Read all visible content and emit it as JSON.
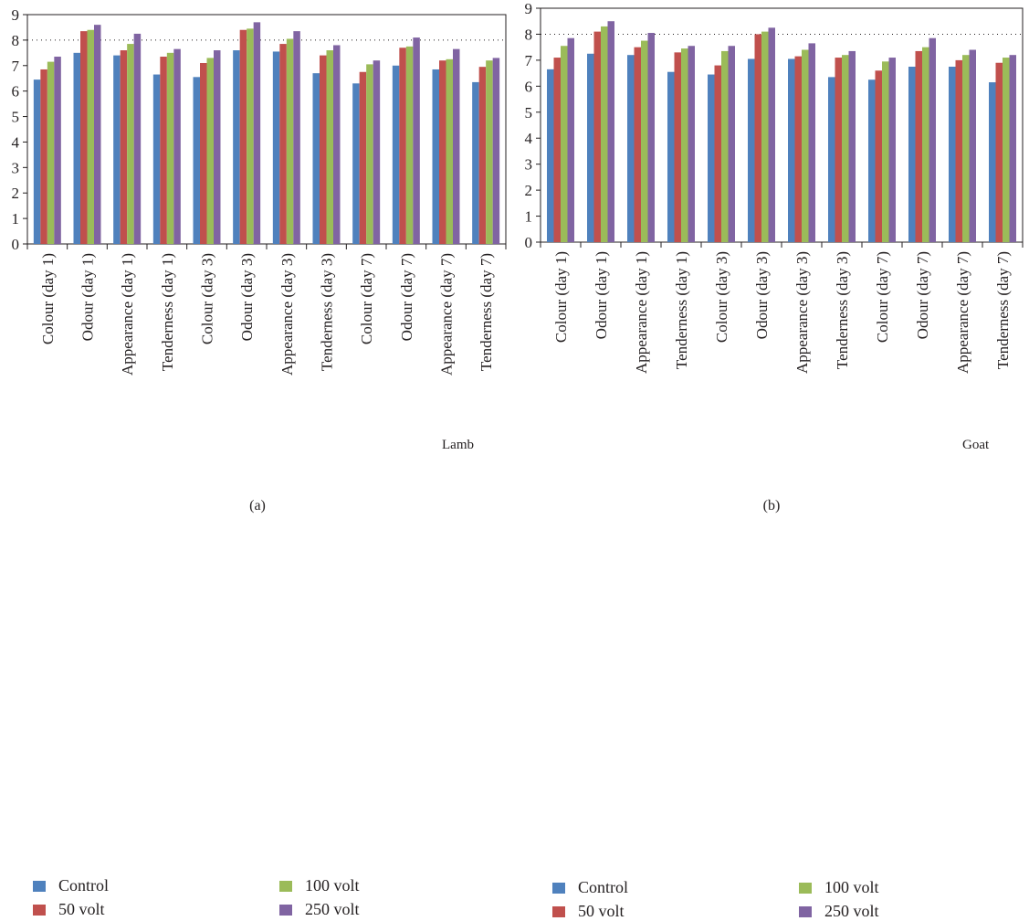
{
  "legend": {
    "colors": [
      "#4f81bd",
      "#c0504d",
      "#9bbb59",
      "#8064a2"
    ]
  },
  "chart_data": [
    {
      "type": "bar",
      "panel_caption": "(a)",
      "species_label": "Lamb",
      "categories": [
        "Colour (day 1)",
        "Odour (day 1)",
        "Appearance (day 1)",
        "Tenderness (day 1)",
        "Colour (day 3)",
        "Odour (day 3)",
        "Appearance (day 3)",
        "Tenderness (day 3)",
        "Colour (day 7)",
        "Odour (day 7)",
        "Appearance (day 7)",
        "Tenderness (day 7)"
      ],
      "series": [
        {
          "name": "Control",
          "values": [
            6.45,
            7.5,
            7.4,
            6.65,
            6.55,
            7.6,
            7.55,
            6.7,
            6.3,
            7.0,
            6.85,
            6.35
          ]
        },
        {
          "name": "50 volt",
          "values": [
            6.85,
            8.35,
            7.6,
            7.35,
            7.1,
            8.4,
            7.85,
            7.4,
            6.75,
            7.7,
            7.2,
            6.95
          ]
        },
        {
          "name": "100 volt",
          "values": [
            7.15,
            8.4,
            7.85,
            7.5,
            7.3,
            8.45,
            8.05,
            7.6,
            7.05,
            7.75,
            7.25,
            7.2
          ]
        },
        {
          "name": "250 volt",
          "values": [
            7.35,
            8.6,
            8.25,
            7.65,
            7.6,
            8.7,
            8.35,
            7.8,
            7.2,
            8.1,
            7.65,
            7.3
          ]
        }
      ],
      "ylim": [
        0,
        9
      ],
      "yticks": [
        "0",
        "1",
        "2",
        "3",
        "4",
        "5",
        "6",
        "7",
        "8",
        "9"
      ],
      "gridline": 8,
      "legend_position": "bottom"
    },
    {
      "type": "bar",
      "panel_caption": "(b)",
      "species_label": "Goat",
      "categories": [
        "Colour (day 1)",
        "Odour (day 1)",
        "Appearance (day 1)",
        "Tenderness (day 1)",
        "Colour (day 3)",
        "Odour (day 3)",
        "Appearance (day 3)",
        "Tenderness (day 3)",
        "Colour (day 7)",
        "Odour (day 7)",
        "Appearance (day 7)",
        "Tenderness (day 7)"
      ],
      "series": [
        {
          "name": "Control",
          "values": [
            6.65,
            7.25,
            7.2,
            6.55,
            6.45,
            7.05,
            7.05,
            6.35,
            6.25,
            6.75,
            6.75,
            6.15
          ]
        },
        {
          "name": "50 volt",
          "values": [
            7.1,
            8.1,
            7.5,
            7.3,
            6.8,
            8.0,
            7.15,
            7.1,
            6.6,
            7.35,
            7.0,
            6.9
          ]
        },
        {
          "name": "100 volt",
          "values": [
            7.55,
            8.3,
            7.75,
            7.45,
            7.35,
            8.1,
            7.4,
            7.2,
            6.95,
            7.5,
            7.2,
            7.1
          ]
        },
        {
          "name": "250 volt",
          "values": [
            7.85,
            8.5,
            8.05,
            7.55,
            7.55,
            8.25,
            7.65,
            7.35,
            7.1,
            7.85,
            7.4,
            7.2
          ]
        }
      ],
      "ylim": [
        0,
        9
      ],
      "yticks": [
        "0",
        "1",
        "2",
        "3",
        "4",
        "5",
        "6",
        "7",
        "8",
        "9"
      ],
      "gridline": 8,
      "legend_position": "bottom"
    }
  ]
}
